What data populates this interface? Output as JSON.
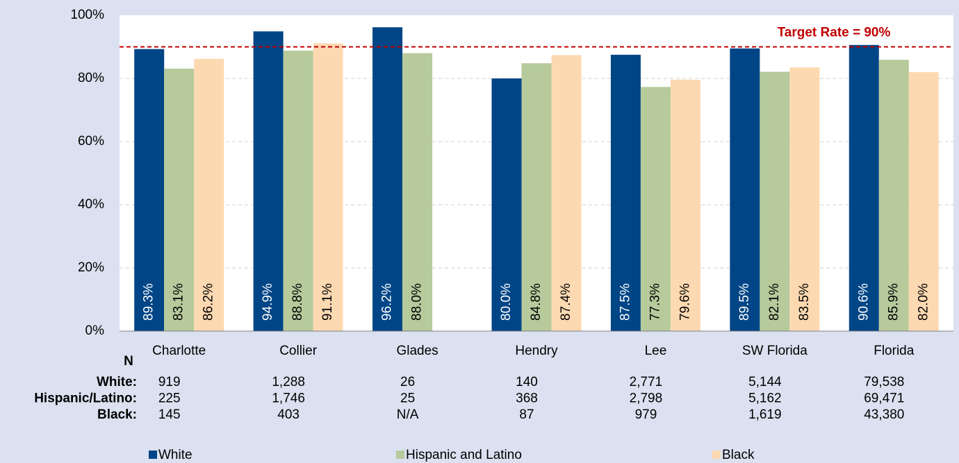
{
  "chart_data": {
    "type": "bar",
    "categories": [
      "Charlotte",
      "Collier",
      "Glades",
      "Hendry",
      "Lee",
      "SW Florida",
      "Florida"
    ],
    "series": [
      {
        "name": "White",
        "color": "#004586",
        "label_color": "#ffffff",
        "values": [
          89.3,
          94.9,
          96.2,
          80.0,
          87.5,
          89.5,
          90.6
        ],
        "value_labels": [
          "89.3%",
          "94.9%",
          "96.2%",
          "80.0%",
          "87.5%",
          "89.5%",
          "90.6%"
        ]
      },
      {
        "name": "Hispanic and Latino",
        "color": "#b6ca9c",
        "label_color": "#000000",
        "values": [
          83.1,
          88.8,
          88.0,
          84.8,
          77.3,
          82.1,
          85.9
        ],
        "value_labels": [
          "83.1%",
          "88.8%",
          "88.0%",
          "84.8%",
          "77.3%",
          "82.1%",
          "85.9%"
        ]
      },
      {
        "name": "Black",
        "color": "#fdd9b2",
        "label_color": "#000000",
        "values": [
          86.2,
          91.1,
          null,
          87.4,
          79.6,
          83.5,
          82.0
        ],
        "value_labels": [
          "86.2%",
          "91.1%",
          null,
          "87.4%",
          "79.6%",
          "83.5%",
          "82.0%"
        ]
      }
    ],
    "ylim": [
      0,
      100
    ],
    "yticks": [
      {
        "value": 0,
        "label": "0%"
      },
      {
        "value": 20,
        "label": "20%"
      },
      {
        "value": 40,
        "label": "40%"
      },
      {
        "value": 60,
        "label": "60%"
      },
      {
        "value": 80,
        "label": "80%"
      },
      {
        "value": 100,
        "label": "100%"
      }
    ],
    "grid": true,
    "target": {
      "value": 90,
      "label": "Target Rate = 90%",
      "color": "#c00000"
    },
    "n_table": {
      "title": "N",
      "rows": [
        {
          "label": "White:",
          "values": [
            "919",
            "1,288",
            "26",
            "140",
            "2,771",
            "5,144",
            "79,538"
          ]
        },
        {
          "label": "Hispanic/Latino:",
          "values": [
            "225",
            "1,746",
            "25",
            "368",
            "2,798",
            "5,162",
            "69,471"
          ]
        },
        {
          "label": "Black:",
          "values": [
            "145",
            "403",
            "N/A",
            "87",
            "979",
            "1,619",
            "43,380"
          ]
        }
      ]
    }
  }
}
